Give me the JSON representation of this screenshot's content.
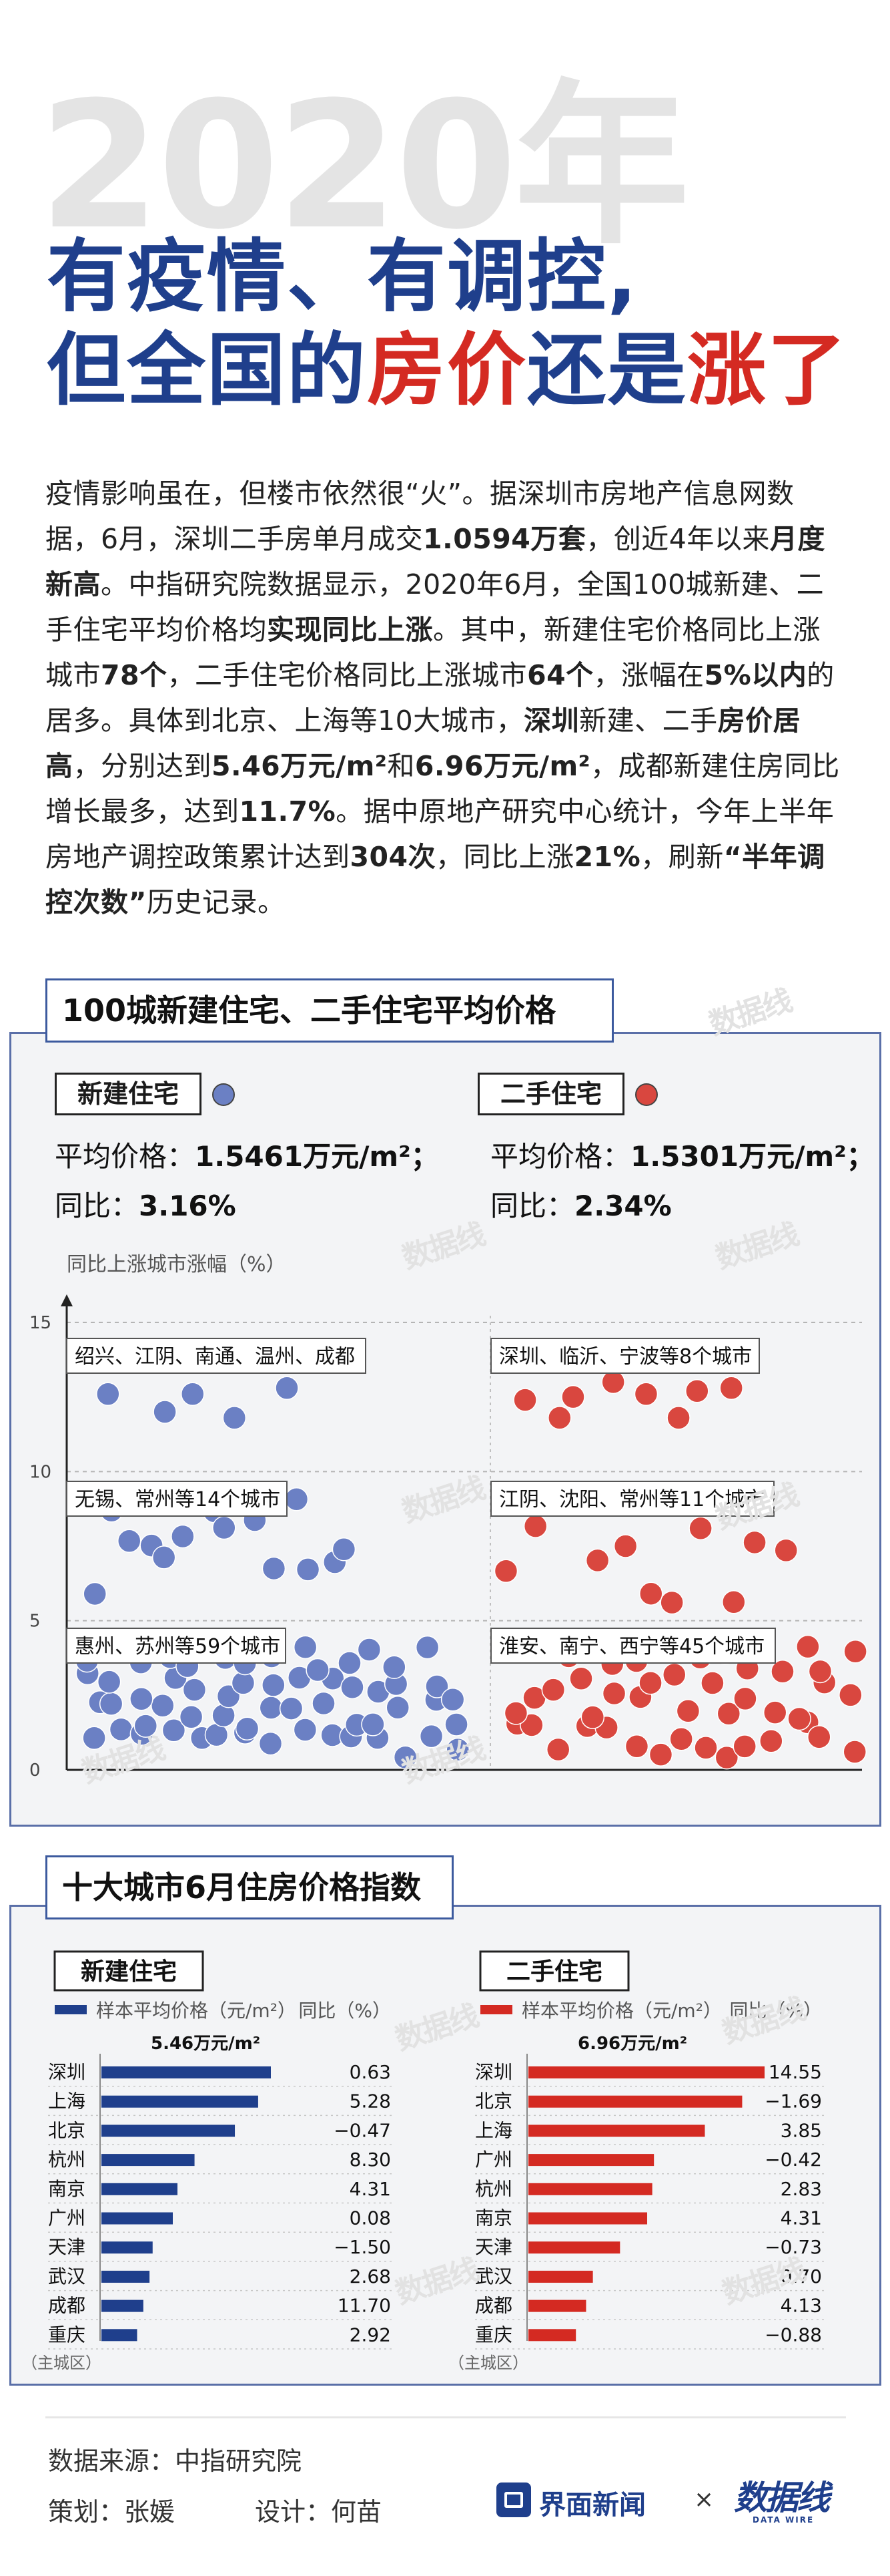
{
  "headline": {
    "year": "2020年",
    "line1": "有疫情、有调控,",
    "line2_a": "但全国的",
    "line2_b": "房价",
    "line2_c": "还是",
    "line2_d": "涨了"
  },
  "intro": [
    {
      "t": "疫情影响虽在，但楼市依然很“火”。据深圳市房地产信息网数据，6月，深圳二手房单月成交",
      "b": false
    },
    {
      "t": "1.0594万套",
      "b": true
    },
    {
      "t": "，创近4年以来",
      "b": false
    },
    {
      "t": "月度新高",
      "b": true
    },
    {
      "t": "。中指研究院数据显示，2020年6月，全国100城新建、二手住宅平均价格均",
      "b": false
    },
    {
      "t": "实现同比上涨",
      "b": true
    },
    {
      "t": "。其中，新建住宅价格同比上涨城市",
      "b": false
    },
    {
      "t": "78个",
      "b": true
    },
    {
      "t": "，二手住宅价格同比上涨城市",
      "b": false
    },
    {
      "t": "64个",
      "b": true
    },
    {
      "t": "，涨幅在",
      "b": false
    },
    {
      "t": "5%以内",
      "b": true
    },
    {
      "t": "的居多。具体到北京、上海等10大城市，",
      "b": false
    },
    {
      "t": "深圳",
      "b": true
    },
    {
      "t": "新建、二手",
      "b": false
    },
    {
      "t": "房价居高",
      "b": true
    },
    {
      "t": "，分别达到",
      "b": false
    },
    {
      "t": "5.46万元/m²",
      "b": true
    },
    {
      "t": "和",
      "b": false
    },
    {
      "t": "6.96万元/m²",
      "b": true
    },
    {
      "t": "，成都新建住房同比增长最多，达到",
      "b": false
    },
    {
      "t": "11.7%",
      "b": true
    },
    {
      "t": "。据中原地产研究中心统计，今年上半年房地产调控政策累计达到",
      "b": false
    },
    {
      "t": "304次",
      "b": true
    },
    {
      "t": "，同比上涨",
      "b": false
    },
    {
      "t": "21%",
      "b": true
    },
    {
      "t": "，刷新",
      "b": false
    },
    {
      "t": "“半年调控次数”",
      "b": true
    },
    {
      "t": "历史记录。",
      "b": false
    }
  ],
  "section1": {
    "title": "100城新建住宅、二手住宅平均价格",
    "new": {
      "label": "新建住宅",
      "avg_label": "平均价格：",
      "avg_value": "1.5461万元/m²；",
      "yoy_label": "同比：",
      "yoy_value": "3.16%"
    },
    "used": {
      "label": "二手住宅",
      "avg_label": "平均价格：",
      "avg_value": "1.5301万元/m²；",
      "yoy_label": "同比：",
      "yoy_value": "2.34%"
    },
    "axis_title": "同比上涨城市涨幅（%）"
  },
  "section2": {
    "title": "十大城市6月住房价格指数"
  },
  "chart_data": [
    {
      "type": "scatter",
      "ylabel": "同比上涨城市涨幅（%）",
      "ylim": [
        0,
        15
      ],
      "yticks": [
        0,
        5,
        10,
        15
      ],
      "grid": true,
      "series": [
        {
          "name": "新建住宅",
          "color": "#6b80c4",
          "groups": [
            {
              "label": "绍兴、江阴、南通、温州、成都",
              "count": 5,
              "range": [
                10,
                15
              ],
              "y": [
                12.6,
                12.0,
                12.6,
                11.8,
                12.8
              ]
            },
            {
              "label": "无锡、常州等14个城市",
              "count": 14,
              "range": [
                5,
                10
              ]
            },
            {
              "label": "惠州、苏州等59个城市",
              "count": 59,
              "range": [
                0,
                5
              ]
            }
          ]
        },
        {
          "name": "二手住宅",
          "color": "#d9473f",
          "groups": [
            {
              "label": "深圳、临沂、宁波等8个城市",
              "count": 8,
              "range": [
                10,
                15
              ],
              "y": [
                12.4,
                11.8,
                12.5,
                13.0,
                12.6,
                11.8,
                12.7,
                12.8
              ]
            },
            {
              "label": "江阴、沈阳、常州等11个城市",
              "count": 11,
              "range": [
                5,
                10
              ]
            },
            {
              "label": "淮安、南宁、西宁等45个城市",
              "count": 45,
              "range": [
                0,
                5
              ]
            }
          ]
        }
      ]
    },
    {
      "type": "bar",
      "title": "新建住宅",
      "legend": "样本平均价格（元/m²）",
      "col2_header": "同比（%）",
      "top_annotation": "5.46万元/m²",
      "categories": [
        "深圳",
        "上海",
        "北京",
        "杭州",
        "南京",
        "广州",
        "天津",
        "武汉",
        "成都",
        "重庆"
      ],
      "values": [
        54600,
        50500,
        43000,
        30000,
        24500,
        23000,
        16500,
        15500,
        13500,
        11500
      ],
      "yoy": [
        "0.63",
        "5.28",
        "−0.47",
        "8.30",
        "4.31",
        "0.08",
        "−1.50",
        "2.68",
        "11.70",
        "2.92"
      ],
      "note": "（主城区）",
      "color": "#1f3f8c"
    },
    {
      "type": "bar",
      "title": "二手住宅",
      "legend": "样本平均价格（元/m²）",
      "col2_header": "同比（%）",
      "top_annotation": "6.96万元/m²",
      "categories": [
        "深圳",
        "北京",
        "上海",
        "广州",
        "杭州",
        "南京",
        "天津",
        "武汉",
        "成都",
        "重庆"
      ],
      "values": [
        69600,
        63000,
        52000,
        37000,
        36500,
        35000,
        27000,
        19000,
        17000,
        14000
      ],
      "yoy": [
        "14.55",
        "−1.69",
        "3.85",
        "−0.42",
        "2.83",
        "4.31",
        "−0.73",
        "0.70",
        "4.13",
        "−0.88"
      ],
      "note": "（主城区）",
      "color": "#d42a22"
    }
  ],
  "footer": {
    "source": "数据来源：中指研究院",
    "planner": "策划：张媛",
    "designer": "设计：何苗",
    "brand1": "界面新闻",
    "times": "×",
    "brand2": "数据线",
    "brand2_sub": "DATA WIRE"
  }
}
